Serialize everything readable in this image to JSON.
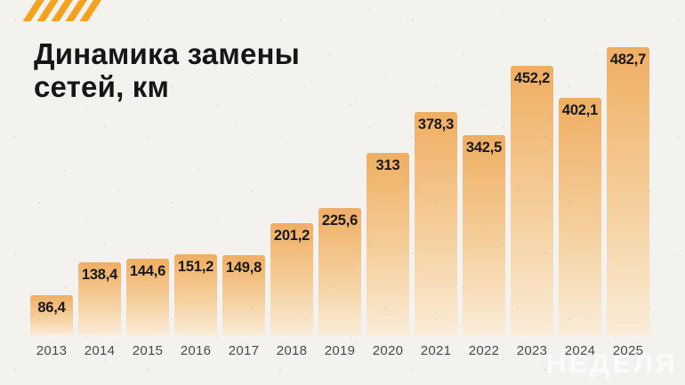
{
  "page": {
    "background": "#f4f2ef"
  },
  "logo": {
    "stripe_count": 5,
    "color": "#f5a31c"
  },
  "title": {
    "line1": "Динамика замены",
    "line2": "сетей, км"
  },
  "watermark": {
    "text": "НЕДЕЛЯ"
  },
  "chart_data": {
    "type": "bar",
    "title": "Динамика замены сетей, км",
    "unit": "км",
    "categories": [
      "2013",
      "2014",
      "2015",
      "2016",
      "2017",
      "2018",
      "2019",
      "2020",
      "2021",
      "2022",
      "2023",
      "2024",
      "2025"
    ],
    "values": [
      86.4,
      138.4,
      144.6,
      151.2,
      149.8,
      201.2,
      225.6,
      313,
      378.3,
      342.5,
      452.2,
      402.1,
      482.7
    ],
    "value_labels": [
      "86,4",
      "138,4",
      "144,6",
      "151,2",
      "149,8",
      "201,2",
      "225,6",
      "313",
      "378,3",
      "342,5",
      "452,2",
      "402,1",
      "482,7"
    ],
    "xlabel": "",
    "ylabel": "",
    "grid": false,
    "legend_position": "none",
    "bar_color_top": "#efae63",
    "bar_color_mid": "#f5cf9d",
    "bar_color_bottom": "#faecd7",
    "label_position": "inside-top"
  }
}
